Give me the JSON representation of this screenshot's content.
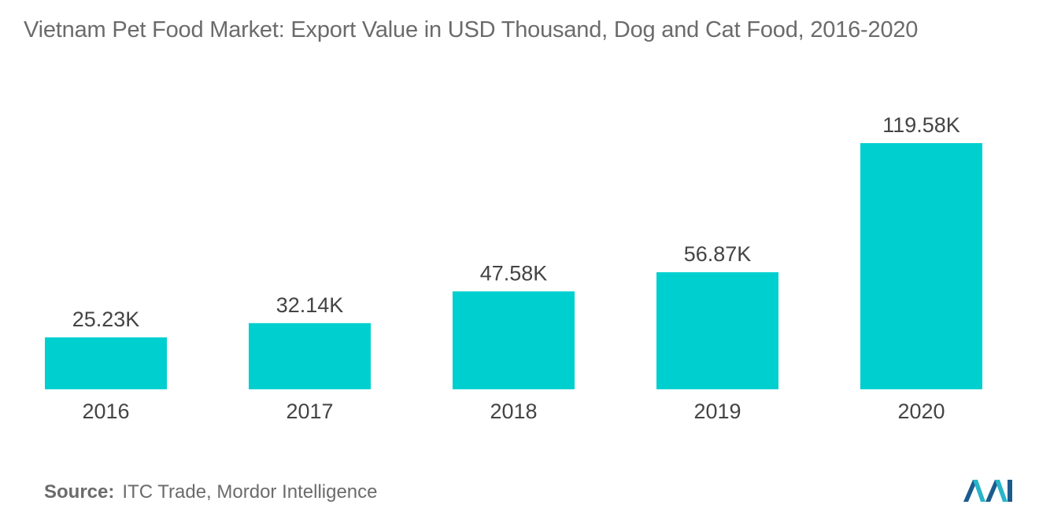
{
  "chart_data": {
    "type": "bar",
    "title": "Vietnam Pet Food Market:  Export Value in USD Thousand, Dog and Cat Food, 2016-2020",
    "categories": [
      "2016",
      "2017",
      "2018",
      "2019",
      "2020"
    ],
    "values": [
      25.23,
      32.14,
      47.58,
      56.87,
      119.58
    ],
    "value_labels": [
      "25.23K",
      "32.14K",
      "47.58K",
      "56.87K",
      "119.58K"
    ],
    "xlabel": "",
    "ylabel": "",
    "ylim": [
      0,
      119.58
    ],
    "grid": false,
    "bar_color": "#00cfd0"
  },
  "source": {
    "label": "Source:",
    "text": "ITC Trade, Mordor Intelligence"
  },
  "logo": {
    "icon": "mordor-intelligence-logo-icon",
    "colors": [
      "#1b5c8f",
      "#29b5c8"
    ]
  }
}
